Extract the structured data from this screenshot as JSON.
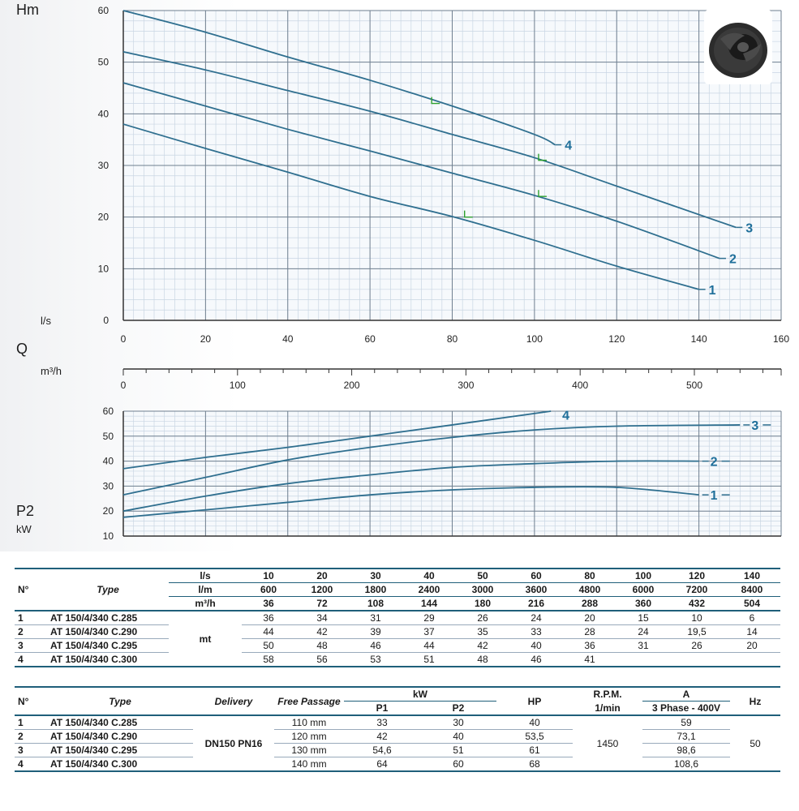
{
  "labels": {
    "hm": "Hm",
    "ls": "l/s",
    "q": "Q",
    "m3h": "m³/h",
    "p2": "P2",
    "kw": "kW"
  },
  "colors": {
    "curve": "#2f6f8f",
    "label": "#1f6f9a",
    "grid_minor": "#c9d6e3",
    "grid_major": "#6f7f8f",
    "marker": "#2ea02e"
  },
  "chart_data": [
    {
      "type": "line",
      "title": "",
      "xlabel": "l/s",
      "ylabel": "Hm",
      "xlim": [
        0,
        160
      ],
      "ylim": [
        0,
        60
      ],
      "x_ticks": [
        0,
        20,
        40,
        60,
        80,
        100,
        120,
        140,
        160
      ],
      "y_ticks": [
        0,
        10,
        20,
        30,
        40,
        50,
        60
      ],
      "series": [
        {
          "name": "1",
          "x": [
            0,
            20,
            40,
            60,
            80,
            100,
            120,
            140
          ],
          "y": [
            38,
            33.3,
            28.7,
            24,
            20.1,
            15.5,
            10.5,
            6
          ]
        },
        {
          "name": "2",
          "x": [
            0,
            20,
            40,
            60,
            80,
            100,
            120,
            145
          ],
          "y": [
            46,
            41.5,
            37,
            32.8,
            28.5,
            24.2,
            19.2,
            12
          ]
        },
        {
          "name": "3",
          "x": [
            0,
            20,
            40,
            60,
            80,
            100,
            120,
            149
          ],
          "y": [
            52,
            48.5,
            44.5,
            40.5,
            36,
            31.5,
            26,
            18
          ]
        },
        {
          "name": "4",
          "x": [
            0,
            20,
            40,
            60,
            80,
            100,
            105
          ],
          "y": [
            60,
            55.8,
            51,
            46.5,
            41.5,
            36,
            34
          ]
        }
      ],
      "markers": [
        {
          "series": "1",
          "x": 83,
          "y": 20
        },
        {
          "series": "2",
          "x": 101,
          "y": 24
        },
        {
          "series": "3",
          "x": 101,
          "y": 31
        },
        {
          "series": "4",
          "x": 75,
          "y": 42
        }
      ],
      "grid": true
    },
    {
      "type": "axis",
      "xlabel": "m³/h",
      "xlim": [
        0,
        576
      ],
      "x_ticks": [
        0,
        100,
        200,
        300,
        400,
        500
      ]
    },
    {
      "type": "line",
      "xlabel": "",
      "ylabel": "P2 kW",
      "xlim": [
        0,
        160
      ],
      "ylim": [
        10,
        60
      ],
      "y_ticks": [
        10,
        20,
        30,
        40,
        50,
        60
      ],
      "series": [
        {
          "name": "1",
          "x": [
            0,
            20,
            40,
            60,
            80,
            100,
            120,
            140
          ],
          "y": [
            17.5,
            20.5,
            23.5,
            26.5,
            28.5,
            29.5,
            29.5,
            26.5
          ]
        },
        {
          "name": "2",
          "x": [
            0,
            20,
            40,
            60,
            80,
            100,
            120,
            140
          ],
          "y": [
            20,
            26,
            31,
            34.5,
            37.5,
            39,
            40,
            40
          ]
        },
        {
          "name": "3",
          "x": [
            0,
            20,
            40,
            60,
            80,
            100,
            120,
            150
          ],
          "y": [
            26.5,
            33.5,
            40.5,
            45.5,
            49.5,
            52.5,
            54,
            54.5
          ]
        },
        {
          "name": "4",
          "x": [
            0,
            20,
            40,
            60,
            80,
            104
          ],
          "y": [
            37,
            41.5,
            45.5,
            50,
            54.5,
            60
          ]
        }
      ],
      "grid": true
    }
  ],
  "table1": {
    "headers": {
      "n": "N°",
      "type": "Type",
      "ls": "l/s",
      "lm": "l/m",
      "m3h": "m³/h",
      "mt": "mt"
    },
    "ls": [
      "10",
      "20",
      "30",
      "40",
      "50",
      "60",
      "80",
      "100",
      "120",
      "140"
    ],
    "lm": [
      "600",
      "1200",
      "1800",
      "2400",
      "3000",
      "3600",
      "4800",
      "6000",
      "7200",
      "8400"
    ],
    "m3h": [
      "36",
      "72",
      "108",
      "144",
      "180",
      "216",
      "288",
      "360",
      "432",
      "504"
    ],
    "rows": [
      {
        "n": "1",
        "type": "AT 150/4/340 C.285",
        "values": [
          "36",
          "34",
          "31",
          "29",
          "26",
          "24",
          "20",
          "15",
          "10",
          "6"
        ]
      },
      {
        "n": "2",
        "type": "AT 150/4/340 C.290",
        "values": [
          "44",
          "42",
          "39",
          "37",
          "35",
          "33",
          "28",
          "24",
          "19,5",
          "14"
        ]
      },
      {
        "n": "3",
        "type": "AT 150/4/340 C.295",
        "values": [
          "50",
          "48",
          "46",
          "44",
          "42",
          "40",
          "36",
          "31",
          "26",
          "20"
        ]
      },
      {
        "n": "4",
        "type": "AT 150/4/340 C.300",
        "values": [
          "58",
          "56",
          "53",
          "51",
          "48",
          "46",
          "41",
          "",
          "",
          ""
        ]
      }
    ]
  },
  "table2": {
    "headers": {
      "n": "N°",
      "type": "Type",
      "delivery": "Delivery",
      "free_passage": "Free Passage",
      "kw": "kW",
      "p1": "P1",
      "p2": "P2",
      "hp": "HP",
      "rpm": "R.P.M.",
      "rpm_unit": "1/min",
      "a": "A",
      "a_sub": "3 Phase - 400V",
      "hz": "Hz"
    },
    "delivery": "DN150 PN16",
    "rpm": "1450",
    "hz": "50",
    "rows": [
      {
        "n": "1",
        "type": "AT 150/4/340 C.285",
        "free": "110 mm",
        "p1": "33",
        "p2": "30",
        "hp": "40",
        "a": "59"
      },
      {
        "n": "2",
        "type": "AT 150/4/340 C.290",
        "free": "120 mm",
        "p1": "42",
        "p2": "40",
        "hp": "53,5",
        "a": "73,1"
      },
      {
        "n": "3",
        "type": "AT 150/4/340 C.295",
        "free": "130 mm",
        "p1": "54,6",
        "p2": "51",
        "hp": "61",
        "a": "98,6"
      },
      {
        "n": "4",
        "type": "AT 150/4/340 C.300",
        "free": "140 mm",
        "p1": "64",
        "p2": "60",
        "hp": "68",
        "a": "108,6"
      }
    ]
  }
}
